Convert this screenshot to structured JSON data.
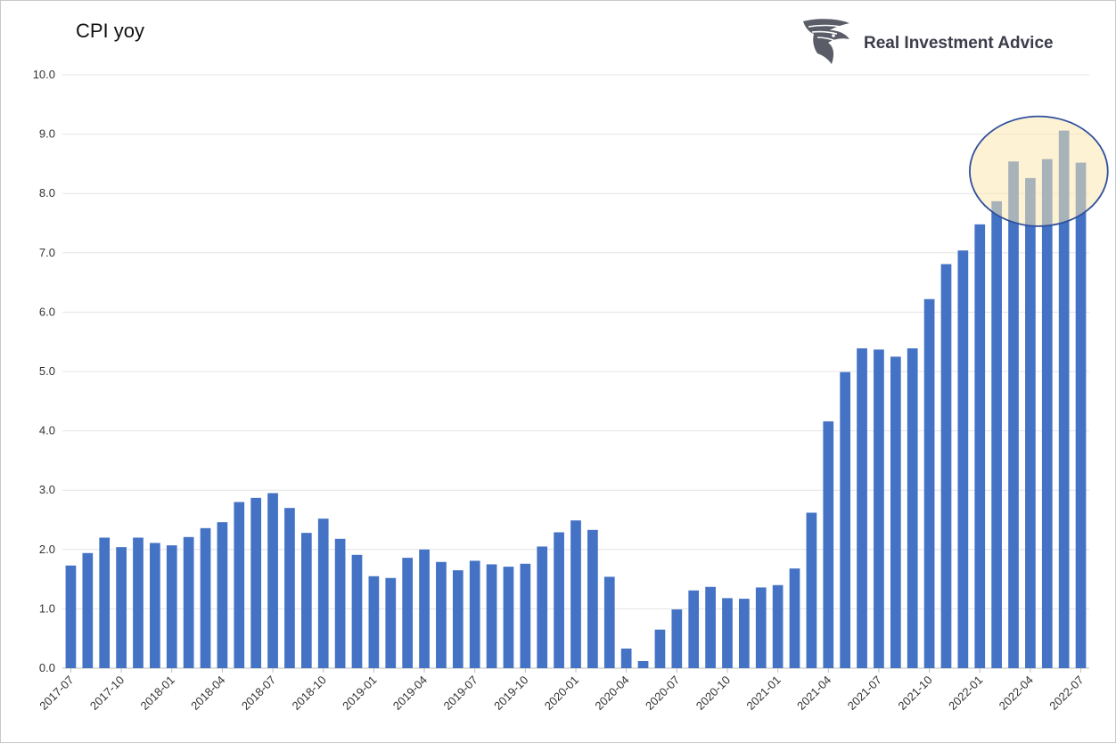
{
  "chart_data": {
    "type": "bar",
    "title": "CPI yoy",
    "xlabel": "",
    "ylabel": "",
    "ylim": [
      0,
      10
    ],
    "yticks": [
      "0.0",
      "1.0",
      "2.0",
      "3.0",
      "4.0",
      "5.0",
      "6.0",
      "7.0",
      "8.0",
      "9.0",
      "10.0"
    ],
    "grid": true,
    "bar_color": "#4472c4",
    "highlight": {
      "shape": "ellipse",
      "fill": "#fbe7b0",
      "stroke": "#2f4f9e",
      "covers": [
        "2022-02",
        "2022-07"
      ]
    },
    "tick_labels_shown": [
      "2017-07",
      "2017-10",
      "2018-01",
      "2018-04",
      "2018-07",
      "2018-10",
      "2019-01",
      "2019-04",
      "2019-07",
      "2019-10",
      "2020-01",
      "2020-04",
      "2020-07",
      "2020-10",
      "2021-01",
      "2021-04",
      "2021-07",
      "2021-10",
      "2022-01",
      "2022-04",
      "2022-07"
    ],
    "categories": [
      "2017-07",
      "2017-08",
      "2017-09",
      "2017-10",
      "2017-11",
      "2017-12",
      "2018-01",
      "2018-02",
      "2018-03",
      "2018-04",
      "2018-05",
      "2018-06",
      "2018-07",
      "2018-08",
      "2018-09",
      "2018-10",
      "2018-11",
      "2018-12",
      "2019-01",
      "2019-02",
      "2019-03",
      "2019-04",
      "2019-05",
      "2019-06",
      "2019-07",
      "2019-08",
      "2019-09",
      "2019-10",
      "2019-11",
      "2019-12",
      "2020-01",
      "2020-02",
      "2020-03",
      "2020-04",
      "2020-05",
      "2020-06",
      "2020-07",
      "2020-08",
      "2020-09",
      "2020-10",
      "2020-11",
      "2020-12",
      "2021-01",
      "2021-02",
      "2021-03",
      "2021-04",
      "2021-05",
      "2021-06",
      "2021-07",
      "2021-08",
      "2021-09",
      "2021-10",
      "2021-11",
      "2021-12",
      "2022-01",
      "2022-02",
      "2022-03",
      "2022-04",
      "2022-05",
      "2022-06",
      "2022-07"
    ],
    "values": [
      1.73,
      1.94,
      2.2,
      2.04,
      2.2,
      2.11,
      2.07,
      2.21,
      2.36,
      2.46,
      2.8,
      2.87,
      2.95,
      2.7,
      2.28,
      2.52,
      2.18,
      1.91,
      1.55,
      1.52,
      1.86,
      2.0,
      1.79,
      1.65,
      1.81,
      1.75,
      1.71,
      1.76,
      2.05,
      2.29,
      2.49,
      2.33,
      1.54,
      0.33,
      0.12,
      0.65,
      0.99,
      1.31,
      1.37,
      1.18,
      1.17,
      1.36,
      1.4,
      1.68,
      2.62,
      4.16,
      4.99,
      5.39,
      5.37,
      5.25,
      5.39,
      6.22,
      6.81,
      7.04,
      7.48,
      7.87,
      8.54,
      8.26,
      8.58,
      9.06,
      8.52
    ]
  },
  "brand": {
    "name": "Real Investment Advice",
    "logo_icon": "eagle-head-icon"
  }
}
